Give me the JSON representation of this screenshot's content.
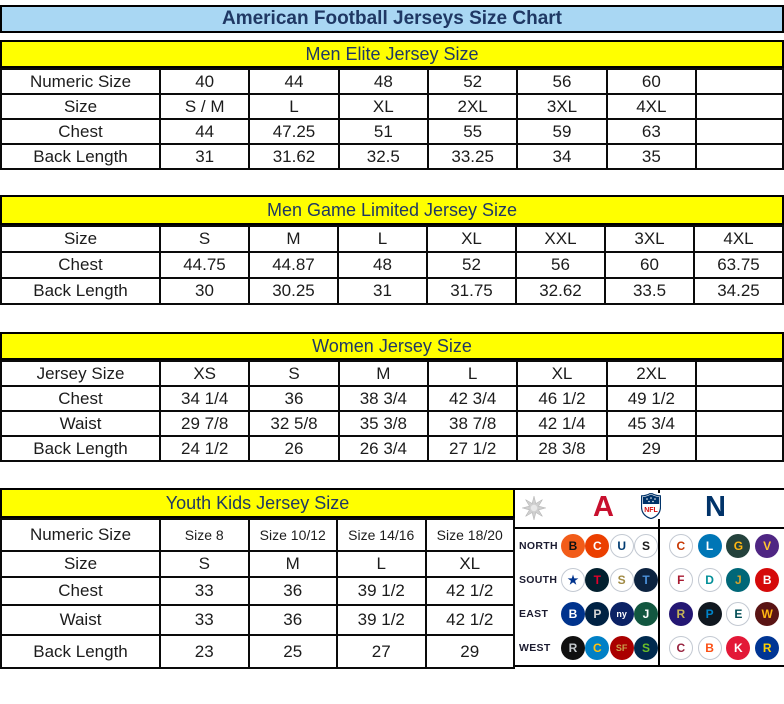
{
  "title": "American Football Jerseys Size Chart",
  "palette": {
    "title_bg": "#a9d7f3",
    "band_bg": "#ffff00",
    "heading_text": "#1f3864",
    "border": "#000000",
    "cell_text": "#1c1c1c",
    "afc_red": "#c8102e",
    "nfc_navy": "#013369"
  },
  "size_tables": [
    {
      "name": "men-elite",
      "heading": "Men Elite Jersey Size",
      "trailing_empty_col": true,
      "rows": [
        [
          "Numeric Size",
          "40",
          "44",
          "48",
          "52",
          "56",
          "60"
        ],
        [
          "Size",
          "S / M",
          "L",
          "XL",
          "2XL",
          "3XL",
          "4XL"
        ],
        [
          "Chest",
          "44",
          "47.25",
          "51",
          "55",
          "59",
          "63"
        ],
        [
          "Back Length",
          "31",
          "31.62",
          "32.5",
          "33.25",
          "34",
          "35"
        ]
      ]
    },
    {
      "name": "men-game-limited",
      "heading": "Men Game Limited Jersey Size",
      "trailing_empty_col": false,
      "rows": [
        [
          "Size",
          "S",
          "M",
          "L",
          "XL",
          "XXL",
          "3XL",
          "4XL"
        ],
        [
          "Chest",
          "44.75",
          "44.87",
          "48",
          "52",
          "56",
          "60",
          "63.75"
        ],
        [
          "Back Length",
          "30",
          "30.25",
          "31",
          "31.75",
          "32.62",
          "33.5",
          "34.25"
        ]
      ]
    },
    {
      "name": "women",
      "heading": "Women Jersey Size",
      "trailing_empty_col": true,
      "rows": [
        [
          "Jersey Size",
          "XS",
          "S",
          "M",
          "L",
          "XL",
          "2XL"
        ],
        [
          "Chest",
          "34 1/4",
          "36",
          "38 3/4",
          "42 3/4",
          "46 1/2",
          "49 1/2"
        ],
        [
          "Waist",
          "29 7/8",
          "32 5/8",
          "35 3/8",
          "38 7/8",
          "42 1/4",
          "45 3/4"
        ],
        [
          "Back Length",
          "24 1/2",
          "26",
          "26 3/4",
          "27 1/2",
          "28 3/8",
          "29"
        ]
      ]
    },
    {
      "name": "youth",
      "heading": "Youth Kids Jersey Size",
      "trailing_empty_col": false,
      "rows": [
        [
          "Numeric Size",
          "Size 8",
          "Size 10/12",
          "Size 14/16",
          "Size 18/20"
        ],
        [
          "Size",
          "S",
          "M",
          "L",
          "XL"
        ],
        [
          "Chest",
          "33",
          "36",
          "39 1/2",
          "42 1/2"
        ],
        [
          "Waist",
          "33",
          "36",
          "39 1/2",
          "42 1/2"
        ],
        [
          "Back Length",
          "23",
          "25",
          "27",
          "29"
        ]
      ]
    }
  ],
  "logo_panel": {
    "conference_icons": {
      "afc_letter": "A",
      "nfc_letter": "N",
      "nfl_label": "NFL"
    },
    "division_rows": [
      {
        "label": "NORTH",
        "afc": [
          "bengals",
          "browns",
          "colts",
          "steelers"
        ],
        "nfc": [
          "bears",
          "lions",
          "packers",
          "vikings"
        ]
      },
      {
        "label": "SOUTH",
        "afc": [
          "cowboys",
          "texans",
          "saints",
          "titans"
        ],
        "nfc": [
          "falcons",
          "dolphins",
          "jaguars",
          "buccaneers"
        ]
      },
      {
        "label": "EAST",
        "afc": [
          "bills",
          "patriots",
          "giants",
          "jets"
        ],
        "nfc": [
          "ravens",
          "panthers",
          "eagles",
          "redskins"
        ]
      },
      {
        "label": "WEST",
        "afc": [
          "raiders",
          "chargers",
          "49ers",
          "seahawks"
        ],
        "nfc": [
          "cardinals",
          "broncos",
          "chiefs",
          "rams"
        ]
      }
    ],
    "team_styles": {
      "bengals": {
        "glyph": "B",
        "bg": "#f25c19",
        "fg": "#111111"
      },
      "browns": {
        "glyph": "C",
        "bg": "#eb3f00",
        "fg": "#ffffff"
      },
      "colts": {
        "glyph": "U",
        "bg": "#ffffff",
        "fg": "#003a70"
      },
      "steelers": {
        "glyph": "S",
        "bg": "#ffffff",
        "fg": "#1a1a1a"
      },
      "cowboys": {
        "glyph": "★",
        "bg": "#ffffff",
        "fg": "#00338d"
      },
      "texans": {
        "glyph": "T",
        "bg": "#03202f",
        "fg": "#e4002b"
      },
      "saints": {
        "glyph": "S",
        "bg": "#ffffff",
        "fg": "#a08a44"
      },
      "titans": {
        "glyph": "T",
        "bg": "#0c2340",
        "fg": "#4b92db"
      },
      "bills": {
        "glyph": "B",
        "bg": "#00338d",
        "fg": "#ffffff"
      },
      "patriots": {
        "glyph": "P",
        "bg": "#002244",
        "fg": "#d6d6d6"
      },
      "giants": {
        "glyph": "ny",
        "bg": "#0b2265",
        "fg": "#ffffff"
      },
      "jets": {
        "glyph": "J",
        "bg": "#125740",
        "fg": "#ffffff"
      },
      "raiders": {
        "glyph": "R",
        "bg": "#101010",
        "fg": "#c4c9cc"
      },
      "chargers": {
        "glyph": "C",
        "bg": "#0080c6",
        "fg": "#ffc20e"
      },
      "49ers": {
        "glyph": "SF",
        "bg": "#aa0000",
        "fg": "#c9a24b"
      },
      "seahawks": {
        "glyph": "S",
        "bg": "#002a4e",
        "fg": "#69be28"
      },
      "bears": {
        "glyph": "C",
        "bg": "#ffffff",
        "fg": "#c83803"
      },
      "lions": {
        "glyph": "L",
        "bg": "#0076b6",
        "fg": "#ffffff"
      },
      "packers": {
        "glyph": "G",
        "bg": "#24423c",
        "fg": "#ffb612"
      },
      "vikings": {
        "glyph": "V",
        "bg": "#4f2683",
        "fg": "#ffc62f"
      },
      "falcons": {
        "glyph": "F",
        "bg": "#ffffff",
        "fg": "#a71930"
      },
      "dolphins": {
        "glyph": "D",
        "bg": "#ffffff",
        "fg": "#008e97"
      },
      "jaguars": {
        "glyph": "J",
        "bg": "#006778",
        "fg": "#d7a22a"
      },
      "buccaneers": {
        "glyph": "B",
        "bg": "#d50a0a",
        "fg": "#ffffff"
      },
      "ravens": {
        "glyph": "R",
        "bg": "#241773",
        "fg": "#c5b358"
      },
      "panthers": {
        "glyph": "P",
        "bg": "#101820",
        "fg": "#0085ca"
      },
      "eagles": {
        "glyph": "E",
        "bg": "#ffffff",
        "fg": "#004c54"
      },
      "redskins": {
        "glyph": "W",
        "bg": "#5a1414",
        "fg": "#ffb612"
      },
      "cardinals": {
        "glyph": "C",
        "bg": "#ffffff",
        "fg": "#97233f"
      },
      "broncos": {
        "glyph": "B",
        "bg": "#ffffff",
        "fg": "#fb4f14"
      },
      "chiefs": {
        "glyph": "K",
        "bg": "#e31837",
        "fg": "#ffffff"
      },
      "rams": {
        "glyph": "R",
        "bg": "#003594",
        "fg": "#ffd100"
      }
    }
  }
}
